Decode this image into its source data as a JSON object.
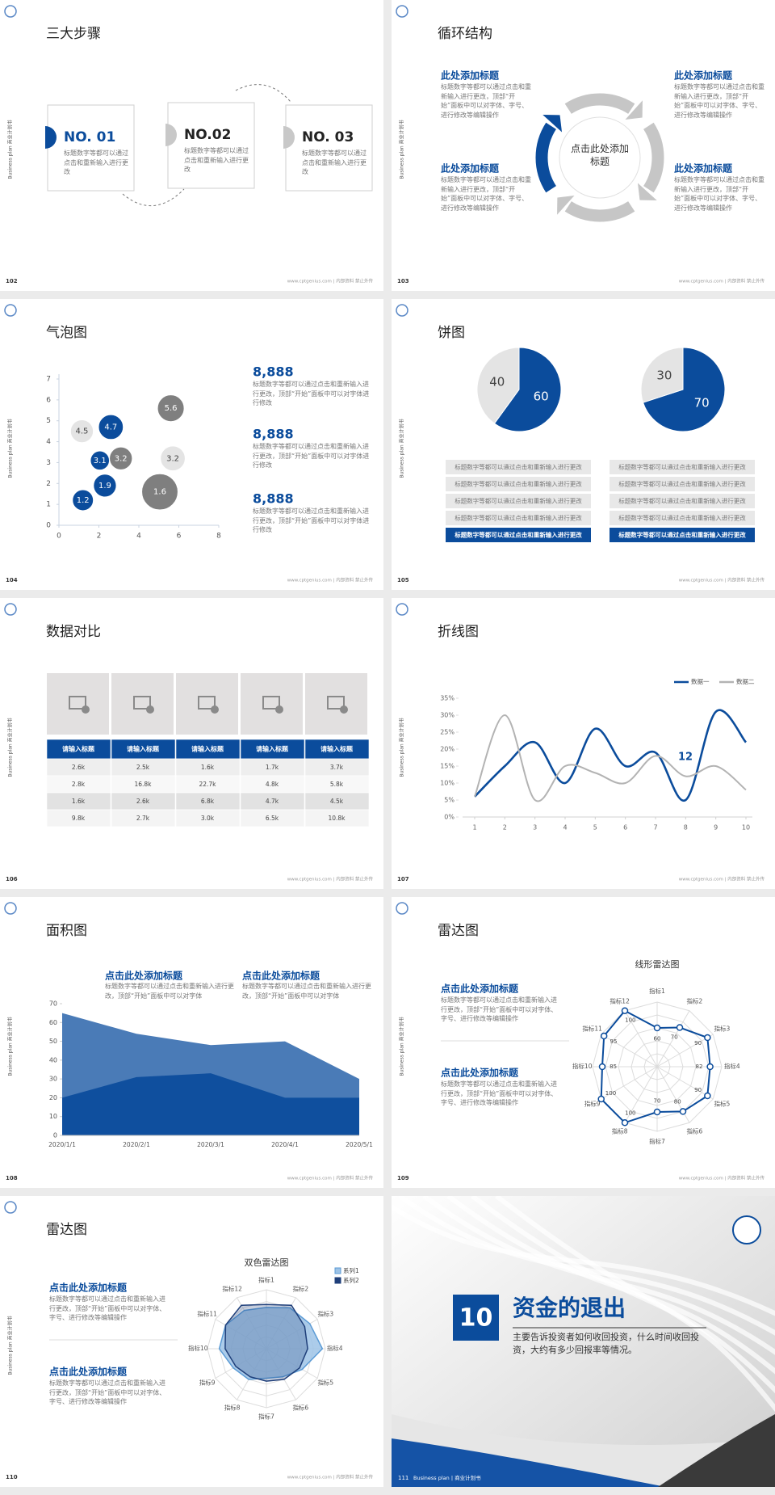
{
  "side_text": "Business plan 商业计划书",
  "footer_text": "www.cptgenius.com | 内部资料 禁止外传",
  "slides": [
    {
      "number": "102",
      "title": "三大步骤",
      "steps": [
        {
          "label": "NO. 01",
          "text": "标题数字等都可以通过点击和重新输入进行更改"
        },
        {
          "label": "NO.02",
          "text": "标题数字等都可以通过点击和重新输入进行更改"
        },
        {
          "label": "NO. 03",
          "text": "标题数字等都可以通过点击和重新输入进行更改"
        }
      ]
    },
    {
      "number": "103",
      "title": "循环结构",
      "center": "点击此处添加标题",
      "blocks": [
        {
          "heading": "此处添加标题",
          "text": "标题数字等都可以通过点击和重新输入进行更改，顶部“开始”面板中可以对字体、字号、进行修改等编辑操作"
        },
        {
          "heading": "此处添加标题",
          "text": "标题数字等都可以通过点击和重新输入进行更改，顶部“开始”面板中可以对字体、字号、进行修改等编辑操作"
        },
        {
          "heading": "此处添加标题",
          "text": "标题数字等都可以通过点击和重新输入进行更改，顶部“开始”面板中可以对字体、字号、进行修改等编辑操作"
        },
        {
          "heading": "此处添加标题",
          "text": "标题数字等都可以通过点击和重新输入进行更改，顶部“开始”面板中可以对字体、字号、进行修改等编辑操作"
        }
      ]
    },
    {
      "number": "104",
      "title": "气泡图",
      "chart_data": {
        "type": "bubble",
        "xlim": [
          0,
          8
        ],
        "xticks": [
          0,
          2,
          4,
          6,
          8
        ],
        "ylim": [
          0,
          7
        ],
        "yticks": [
          0,
          1,
          2,
          3,
          4,
          5,
          6,
          7
        ],
        "series": [
          {
            "color": "#0b4c9c",
            "x": [
              1.2,
              2.3,
              2.05,
              2.6
            ],
            "values": [
              1.2,
              1.9,
              3.1,
              4.7
            ],
            "sizes": [
              11,
              12,
              10,
              13
            ]
          },
          {
            "color": "#e4e4e4",
            "x": [
              1.15,
              5.7
            ],
            "values": [
              4.5,
              3.2
            ],
            "sizes": [
              12,
              13
            ]
          },
          {
            "color": "#7f7f7f",
            "x": [
              3.1,
              5.6,
              5.05
            ],
            "values": [
              3.2,
              5.6,
              1.6
            ],
            "sizes": [
              12,
              14,
              19
            ]
          }
        ]
      },
      "blocks": [
        {
          "heading": "8,888",
          "text": "标题数字等都可以通过点击和重新输入进行更改，顶部“开始”面板中可以对字体进行修改"
        },
        {
          "heading": "8,888",
          "text": "标题数字等都可以通过点击和重新输入进行更改，顶部“开始”面板中可以对字体进行修改"
        },
        {
          "heading": "8,888",
          "text": "标题数字等都可以通过点击和重新输入进行更改，顶部“开始”面板中可以对字体进行修改"
        }
      ]
    },
    {
      "number": "105",
      "title": "饼图",
      "chart_data": [
        {
          "type": "pie",
          "values": [
            60,
            40
          ],
          "colors": [
            "#0b4c9c",
            "#e4e4e4"
          ]
        },
        {
          "type": "pie",
          "values": [
            70,
            30
          ],
          "colors": [
            "#0b4c9c",
            "#e4e4e4"
          ]
        }
      ],
      "lists": [
        [
          "标题数字等都可以通过点击和重新输入进行更改",
          "标题数字等都可以通过点击和重新输入进行更改",
          "标题数字等都可以通过点击和重新输入进行更改",
          "标题数字等都可以通过点击和重新输入进行更改",
          "标题数字等都可以通过点击和重新输入进行更改"
        ],
        [
          "标题数字等都可以通过点击和重新输入进行更改",
          "标题数字等都可以通过点击和重新输入进行更改",
          "标题数字等都可以通过点击和重新输入进行更改",
          "标题数字等都可以通过点击和重新输入进行更改",
          "标题数字等都可以通过点击和重新输入进行更改"
        ]
      ]
    },
    {
      "number": "106",
      "title": "数据对比",
      "table": {
        "header": [
          "请输入标题",
          "请输入标题",
          "请输入标题",
          "请输入标题",
          "请输入标题"
        ],
        "rows": [
          [
            "2.6k",
            "2.5k",
            "1.6k",
            "1.7k",
            "3.7k"
          ],
          [
            "2.8k",
            "16.8k",
            "22.7k",
            "4.8k",
            "5.8k"
          ],
          [
            "1.6k",
            "2.6k",
            "6.8k",
            "4.7k",
            "4.5k"
          ],
          [
            "9.8k",
            "2.7k",
            "3.0k",
            "6.5k",
            "10.8k"
          ]
        ]
      }
    },
    {
      "number": "107",
      "title": "折线图",
      "chart_data": {
        "type": "line",
        "x": [
          1,
          2,
          3,
          4,
          5,
          6,
          7,
          8,
          9,
          10
        ],
        "xlim": [
          1,
          10
        ],
        "xticks": [
          1,
          2,
          3,
          4,
          5,
          6,
          7,
          8,
          9,
          10
        ],
        "ylim": [
          0,
          35
        ],
        "yticks": [
          {
            "value": 0,
            "label": "0%"
          },
          {
            "value": 5,
            "label": "5%"
          },
          {
            "value": 10,
            "label": "10%"
          },
          {
            "value": 15,
            "label": "15%"
          },
          {
            "value": 20,
            "label": "20%"
          },
          {
            "value": 25,
            "label": "25%"
          },
          {
            "value": 30,
            "label": "30%"
          },
          {
            "value": 35,
            "label": "35%"
          }
        ],
        "series": [
          {
            "name": "数据一",
            "color": "#0b4c9c",
            "values": [
              6,
              15,
              22,
              10,
              26,
              15,
              19,
              5,
              31,
              22
            ]
          },
          {
            "name": "数据二",
            "color": "#b3b3b3",
            "values": [
              6,
              30,
              5,
              15,
              13,
              10,
              18,
              12,
              15,
              8
            ]
          }
        ],
        "annotation": "12"
      }
    },
    {
      "number": "108",
      "title": "面积图",
      "chart_data": {
        "type": "area",
        "categories": [
          "2020/1/1",
          "2020/2/1",
          "2020/3/1",
          "2020/4/1",
          "2020/5/1"
        ],
        "ylim": [
          0,
          70
        ],
        "yticks": [
          0,
          10,
          20,
          30,
          40,
          50,
          60,
          70
        ],
        "series": [
          {
            "color": "#4a7bb7",
            "values": [
              65,
              54,
              48,
              50,
              30
            ]
          },
          {
            "color": "#0f4f9e",
            "values": [
              20,
              31,
              33,
              20,
              20
            ]
          }
        ]
      },
      "blocks": [
        {
          "heading": "点击此处添加标题",
          "text": "标题数字等都可以通过点击和重新输入进行更改，顶部“开始”面板中可以对字体"
        },
        {
          "heading": "点击此处添加标题",
          "text": "标题数字等都可以通过点击和重新输入进行更改，顶部“开始”面板中可以对字体"
        }
      ]
    },
    {
      "number": "109",
      "title": "雷达图",
      "chart_data": {
        "type": "radar",
        "title": "线形雷达图",
        "rlim": [
          0,
          100
        ],
        "categories": [
          "指标1",
          "指标2",
          "指标3",
          "指标4",
          "指标5",
          "指标6",
          "指标7",
          "指标8",
          "指标9",
          "指标10",
          "指标11",
          "指标12"
        ],
        "series": [
          {
            "color": "#0b4c9c",
            "values": [
              60,
              70,
              90,
              82,
              90,
              80,
              70,
              100,
              100,
              85,
              95,
              100
            ]
          }
        ]
      },
      "blocks": [
        {
          "heading": "点击此处添加标题",
          "text": "标题数字等都可以通过点击和重新输入进行更改，顶部“开始”面板中可以对字体、字号、进行修改等编辑操作"
        },
        {
          "heading": "点击此处添加标题",
          "text": "标题数字等都可以通过点击和重新输入进行更改，顶部“开始”面板中可以对字体、字号、进行修改等编辑操作"
        }
      ]
    },
    {
      "number": "110",
      "title": "雷达图",
      "chart_data": {
        "type": "radar",
        "title": "双色雷达图",
        "rlim": [
          0,
          100
        ],
        "categories": [
          "指标1",
          "指标2",
          "指标3",
          "指标4",
          "指标5",
          "指标6",
          "指标7",
          "指标8",
          "指标9",
          "指标10",
          "指标11",
          "指标12"
        ],
        "series": [
          {
            "name": "系列1",
            "color": "#9dc3e6",
            "values": [
              70,
              80,
              85,
              95,
              70,
              55,
              50,
              60,
              65,
              80,
              80,
              75
            ]
          },
          {
            "name": "系列2",
            "color": "#1f3f7a",
            "values": [
              75,
              85,
              75,
              70,
              65,
              60,
              55,
              55,
              60,
              70,
              80,
              85
            ]
          }
        ]
      },
      "blocks": [
        {
          "heading": "点击此处添加标题",
          "text": "标题数字等都可以通过点击和重新输入进行更改，顶部“开始”面板中可以对字体、字号、进行修改等编辑操作"
        },
        {
          "heading": "点击此处添加标题",
          "text": "标题数字等都可以通过点击和重新输入进行更改，顶部“开始”面板中可以对字体、字号、进行修改等编辑操作"
        }
      ]
    },
    {
      "number": "111",
      "badge": "10",
      "title": "资金的退出",
      "text": "主要告诉投资者如何收回投资，什么时间收回投资，大约有多少回报率等情况。",
      "footer": "Business plan | 商业计划书"
    }
  ]
}
